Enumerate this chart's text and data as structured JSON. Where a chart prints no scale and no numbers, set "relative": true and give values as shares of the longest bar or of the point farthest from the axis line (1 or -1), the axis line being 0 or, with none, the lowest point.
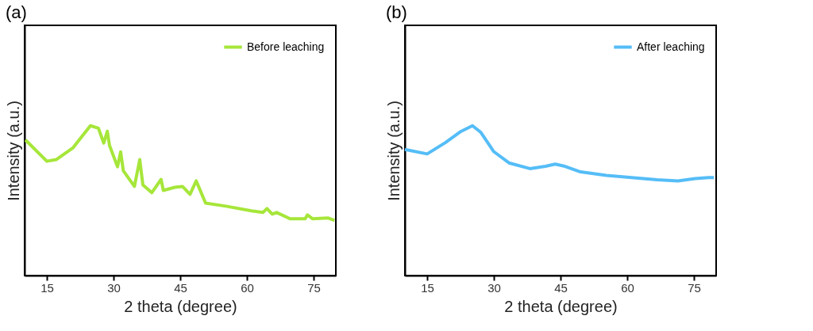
{
  "chart_data": [
    {
      "type": "line",
      "title": "(a)",
      "xlabel": "2 theta (degree)",
      "ylabel": "Intensity (a.u.)",
      "relative": true,
      "xlim": [
        10,
        80
      ],
      "xticks": [
        15,
        30,
        45,
        60,
        75
      ],
      "tick_labels": "x",
      "grid": false,
      "legend": "top right",
      "line_style": "solid",
      "series": [
        {
          "name": "Before leaching",
          "color": "#a6e63a",
          "x": [
            10.2,
            15,
            17.1,
            20.9,
            24.8,
            26.6,
            27.8,
            28.6,
            29.1,
            30.9,
            31.6,
            32.2,
            34.7,
            35.9,
            36.6,
            38.6,
            40.7,
            41.2,
            43.8,
            45.5,
            47.2,
            48.6,
            50.7,
            55.3,
            61,
            63.6,
            64.5,
            65.7,
            66.7,
            69.7,
            73.1,
            73.6,
            74.8,
            78.3,
            79.7
          ],
          "values": [
            0.905,
            0.763,
            0.774,
            0.853,
            1,
            0.984,
            0.884,
            0.963,
            0.868,
            0.726,
            0.826,
            0.7,
            0.595,
            0.774,
            0.605,
            0.553,
            0.642,
            0.568,
            0.589,
            0.595,
            0.542,
            0.632,
            0.484,
            0.463,
            0.432,
            0.421,
            0.447,
            0.41,
            0.421,
            0.379,
            0.379,
            0.405,
            0.379,
            0.384,
            0.368
          ]
        }
      ]
    },
    {
      "type": "line",
      "title": "(b)",
      "xlabel": "2 theta (degree)",
      "ylabel": "Intensity (a.u.)",
      "relative": true,
      "xlim": [
        10,
        80
      ],
      "xticks": [
        15,
        30,
        45,
        60,
        75
      ],
      "tick_labels": "x",
      "grid": false,
      "legend": "top right",
      "line_style": "solid",
      "series": [
        {
          "name": "After leaching",
          "color": "#55bdf7",
          "x": [
            10,
            15,
            19.1,
            22.6,
            25.2,
            27.1,
            30,
            33.4,
            38.1,
            41.6,
            43.8,
            46,
            49.5,
            55.3,
            61,
            66.7,
            71.4,
            75.3,
            78.3,
            79.5
          ],
          "values": [
            0.842,
            0.812,
            0.887,
            0.962,
            1,
            0.955,
            0.827,
            0.752,
            0.714,
            0.729,
            0.744,
            0.729,
            0.692,
            0.669,
            0.654,
            0.639,
            0.632,
            0.647,
            0.654,
            0.654
          ]
        }
      ]
    }
  ]
}
